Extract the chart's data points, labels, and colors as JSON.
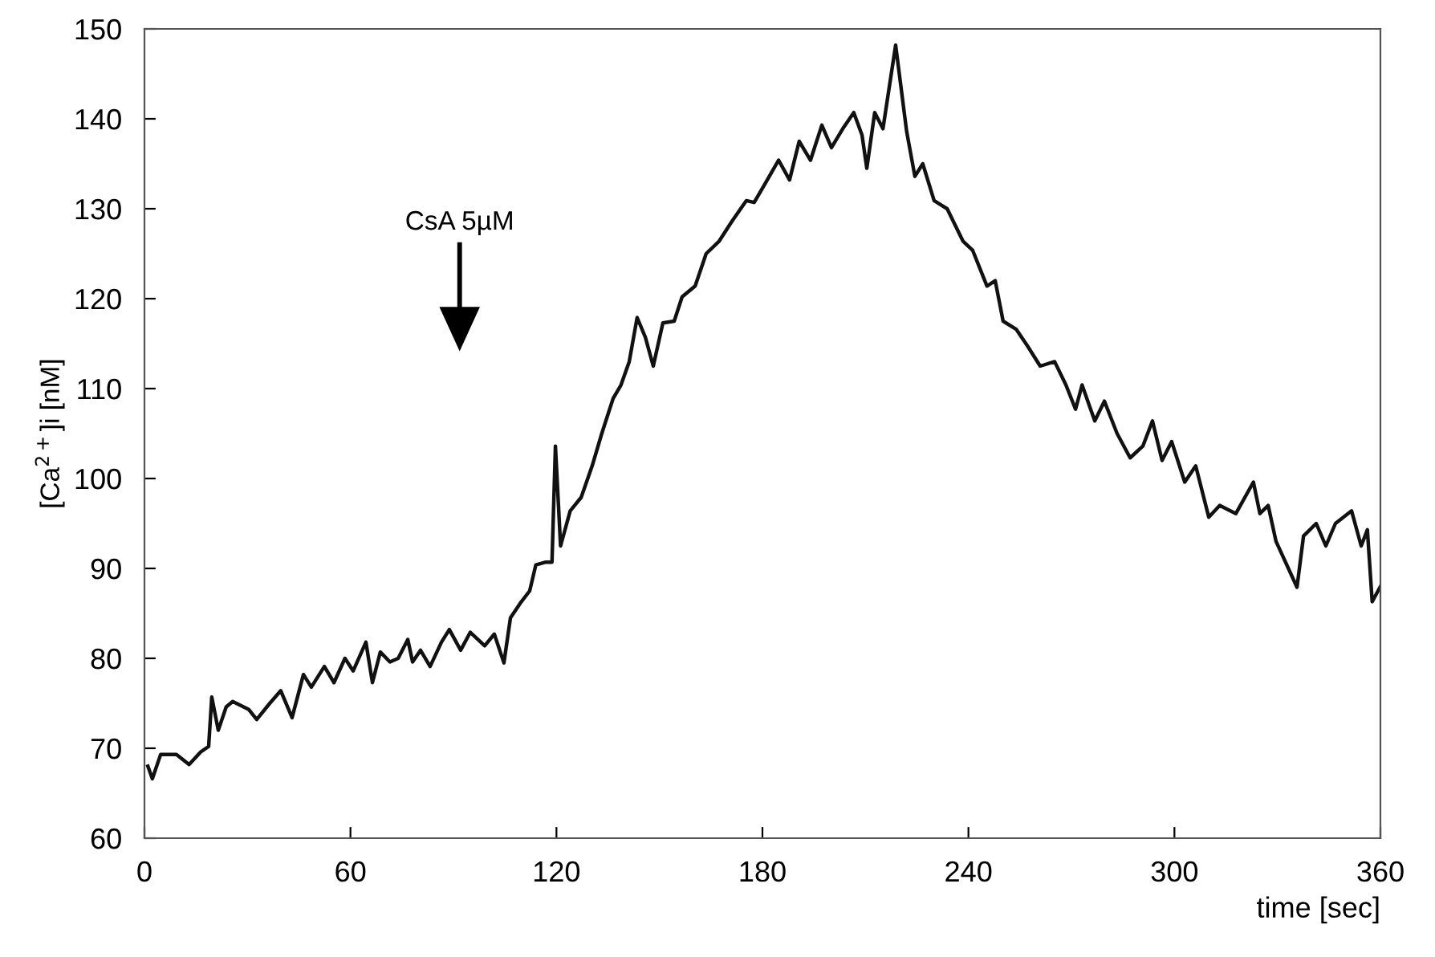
{
  "chart_data": {
    "type": "line",
    "xlabel": "time [sec]",
    "ylabel": "[Ca$^{2+}$]i [nM]",
    "xlim": [
      0,
      360
    ],
    "xticks": [
      0,
      60,
      120,
      180,
      240,
      300,
      360
    ],
    "ylim": [
      60,
      150
    ],
    "yticks": [
      60,
      70,
      80,
      90,
      100,
      110,
      120,
      130,
      140,
      150
    ],
    "grid": false,
    "marker": "none",
    "line_style": "solid",
    "annotations": [
      "CsA 5µM"
    ],
    "series": [
      {
        "color": "#111111",
        "x": [
          1,
          2.3,
          4.7,
          9.3,
          13,
          16.4,
          18.7,
          19.6,
          21.5,
          23.8,
          25.7,
          30.4,
          32.7,
          36.5,
          39.7,
          43,
          46.3,
          48.6,
          52.4,
          55.2,
          58.4,
          60.8,
          64.5,
          66.4,
          68.7,
          71.5,
          73.9,
          76.7,
          78.1,
          80.4,
          83.2,
          86.5,
          88.8,
          92.1,
          94.9,
          99.1,
          101.9,
          104.7,
          106.6,
          109.4,
          112.2,
          114,
          116.9,
          118.7,
          119.7,
          121.2,
          124,
          127.2,
          130.4,
          133.2,
          136.5,
          138.8,
          141.2,
          143.5,
          145.9,
          148.2,
          151,
          154.3,
          156.6,
          160.4,
          163.6,
          167.4,
          171.1,
          175.3,
          177.6,
          181.4,
          184.7,
          187.9,
          190.7,
          194,
          197.3,
          200.1,
          203.4,
          206.6,
          209,
          210.4,
          212.7,
          215.1,
          218.8,
          222,
          224.4,
          226.7,
          230,
          233.8,
          238.4,
          241.2,
          245.4,
          247.8,
          250.1,
          253.9,
          257.1,
          260.9,
          265.1,
          268.4,
          271.2,
          273.1,
          276.8,
          279.6,
          283.3,
          287.1,
          290.8,
          293.6,
          296.4,
          299.2,
          303,
          306.2,
          310,
          313.2,
          317.9,
          323,
          324.9,
          327.3,
          329.6,
          335.7,
          337.6,
          341.3,
          344.1,
          346.9,
          351.6,
          354.4,
          356.2,
          357.6,
          360
        ],
        "values": [
          68.0,
          66.6,
          69.3,
          69.3,
          68.2,
          69.6,
          70.2,
          75.7,
          72,
          74.6,
          75.2,
          74.3,
          73.2,
          75,
          76.4,
          73.4,
          78.2,
          76.8,
          79.1,
          77.3,
          80,
          78.6,
          81.8,
          77.3,
          80.7,
          79.6,
          80,
          82.1,
          79.6,
          80.9,
          79.1,
          81.8,
          83.2,
          80.9,
          82.9,
          81.4,
          82.7,
          79.5,
          84.5,
          86.1,
          87.5,
          90.4,
          90.7,
          90.7,
          103.6,
          92.5,
          96.4,
          97.9,
          101.4,
          105,
          108.9,
          110.4,
          113,
          117.9,
          115.7,
          112.5,
          117.3,
          117.5,
          120.2,
          121.4,
          125,
          126.4,
          128.6,
          130.9,
          130.7,
          133.2,
          135.4,
          133.2,
          137.5,
          135.4,
          139.3,
          136.8,
          138.9,
          140.7,
          138.2,
          134.5,
          140.7,
          138.9,
          148.2,
          138.6,
          133.6,
          135,
          130.9,
          130,
          126.4,
          125.4,
          121.4,
          122,
          117.5,
          116.6,
          114.8,
          112.5,
          113,
          110.4,
          107.7,
          110.4,
          106.4,
          108.6,
          105,
          102.3,
          103.6,
          106.4,
          102,
          104.1,
          99.6,
          101.4,
          95.7,
          97,
          96.1,
          99.6,
          96.1,
          97,
          93,
          87.9,
          93.6,
          95,
          92.5,
          95,
          96.4,
          92.5,
          94.3,
          86.3,
          88
        ]
      }
    ]
  }
}
